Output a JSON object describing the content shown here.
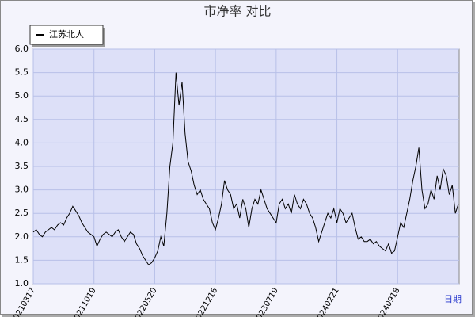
{
  "chart_data": {
    "type": "line",
    "title": "市净率  对比",
    "x_label": "日期",
    "categories": [
      "20210317",
      null,
      null,
      null,
      null,
      null,
      null,
      null,
      null,
      null,
      null,
      null,
      null,
      null,
      null,
      null,
      null,
      null,
      null,
      null,
      "20211019",
      null,
      null,
      null,
      null,
      null,
      null,
      null,
      null,
      null,
      null,
      null,
      null,
      null,
      null,
      null,
      null,
      null,
      null,
      null,
      "20220520",
      null,
      null,
      null,
      null,
      null,
      null,
      null,
      null,
      null,
      null,
      null,
      null,
      null,
      null,
      null,
      null,
      null,
      null,
      null,
      "20221216",
      null,
      null,
      null,
      null,
      null,
      null,
      null,
      null,
      null,
      null,
      null,
      null,
      null,
      null,
      null,
      null,
      null,
      null,
      null,
      "20230719",
      null,
      null,
      null,
      null,
      null,
      null,
      null,
      null,
      null,
      null,
      null,
      null,
      null,
      null,
      null,
      null,
      null,
      null,
      null,
      "20240221",
      null,
      null,
      null,
      null,
      null,
      null,
      null,
      null,
      null,
      null,
      null,
      null,
      null,
      null,
      null,
      null,
      null,
      null,
      null,
      "20240918",
      null,
      null,
      null,
      null,
      null,
      null,
      null,
      null,
      null,
      null,
      null,
      null,
      null,
      null,
      null,
      null,
      null,
      null,
      null,
      null
    ],
    "series": [
      {
        "name": "江苏北人",
        "color": "#000000",
        "values": [
          2.1,
          2.15,
          2.05,
          2.0,
          2.1,
          2.15,
          2.2,
          2.15,
          2.25,
          2.3,
          2.25,
          2.4,
          2.5,
          2.65,
          2.55,
          2.45,
          2.3,
          2.2,
          2.1,
          2.05,
          2.0,
          1.8,
          1.95,
          2.05,
          2.1,
          2.05,
          2.0,
          2.1,
          2.15,
          2.0,
          1.9,
          2.0,
          2.1,
          2.05,
          1.85,
          1.75,
          1.6,
          1.5,
          1.4,
          1.45,
          1.55,
          1.7,
          2.0,
          1.8,
          2.5,
          3.5,
          4.0,
          5.5,
          4.8,
          5.3,
          4.2,
          3.6,
          3.4,
          3.1,
          2.9,
          3.0,
          2.8,
          2.7,
          2.6,
          2.3,
          2.15,
          2.4,
          2.7,
          3.2,
          3.0,
          2.9,
          2.6,
          2.7,
          2.4,
          2.8,
          2.6,
          2.2,
          2.6,
          2.8,
          2.7,
          3.0,
          2.8,
          2.6,
          2.5,
          2.4,
          2.3,
          2.7,
          2.8,
          2.6,
          2.7,
          2.5,
          2.9,
          2.7,
          2.6,
          2.8,
          2.7,
          2.5,
          2.4,
          2.2,
          1.9,
          2.1,
          2.3,
          2.5,
          2.4,
          2.6,
          2.3,
          2.6,
          2.5,
          2.3,
          2.4,
          2.5,
          2.2,
          1.95,
          2.0,
          1.9,
          1.9,
          1.95,
          1.85,
          1.9,
          1.8,
          1.75,
          1.7,
          1.85,
          1.65,
          1.7,
          2.0,
          2.3,
          2.2,
          2.5,
          2.8,
          3.2,
          3.5,
          3.9,
          3.0,
          2.6,
          2.7,
          3.0,
          2.8,
          3.3,
          3.0,
          3.45,
          3.3,
          2.9,
          3.1,
          2.5,
          2.7
        ]
      }
    ],
    "ylim": [
      1.0,
      6.0
    ],
    "yticks": [
      {
        "value": 1.0,
        "label": "1.0"
      },
      {
        "value": 1.5,
        "label": "1.5"
      },
      {
        "value": 2.0,
        "label": "2.0"
      },
      {
        "value": 2.5,
        "label": "2.5"
      },
      {
        "value": 3.0,
        "label": "3.0"
      },
      {
        "value": 3.5,
        "label": "3.5"
      },
      {
        "value": 4.0,
        "label": "4.0"
      },
      {
        "value": 4.5,
        "label": "4.5"
      },
      {
        "value": 5.0,
        "label": "5.0"
      },
      {
        "value": 5.5,
        "label": "5.5"
      },
      {
        "value": 6.0,
        "label": "6.0"
      }
    ],
    "grid": true,
    "legend": "top-left"
  }
}
